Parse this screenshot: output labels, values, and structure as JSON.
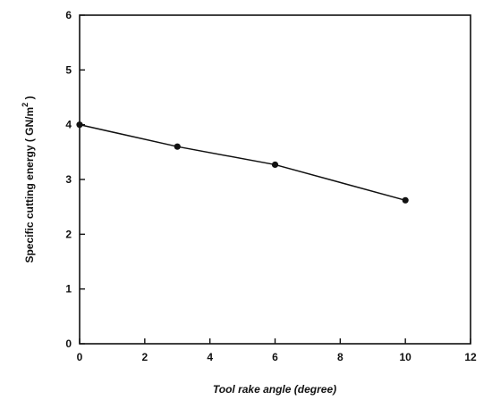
{
  "chart_data": {
    "type": "line",
    "title": "",
    "xlabel": "Tool rake angle (degree)",
    "ylabel_prefix": "Specific cutting energy  ( GN/m",
    "ylabel_sup": "2",
    "ylabel_suffix": "  )",
    "xlim": [
      0,
      12
    ],
    "ylim": [
      0,
      6
    ],
    "xticks": [
      0,
      2,
      4,
      6,
      8,
      10,
      12
    ],
    "yticks": [
      0,
      1,
      2,
      3,
      4,
      5,
      6
    ],
    "grid": false,
    "series": [
      {
        "x": [
          0,
          3,
          6,
          10
        ],
        "y": [
          4.0,
          3.6,
          3.27,
          2.62
        ]
      }
    ],
    "colors": {
      "line": "#111111",
      "marker": "#111111"
    }
  }
}
